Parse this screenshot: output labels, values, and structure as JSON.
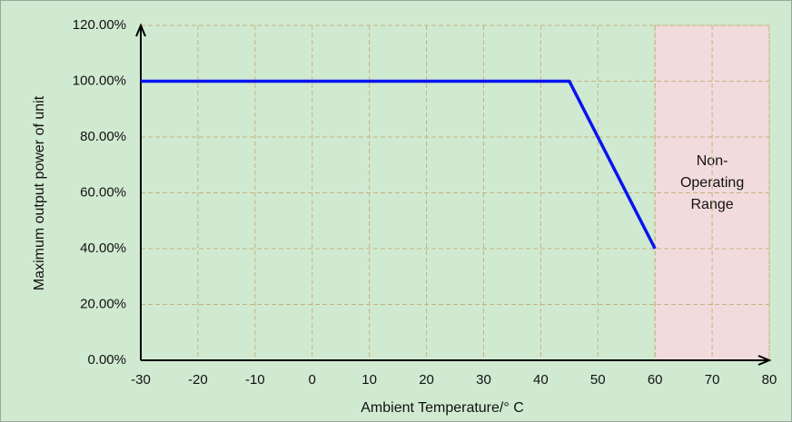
{
  "chart_data": {
    "type": "line",
    "x_label": "Ambient Temperature/° C",
    "y_label": "Maximum output power of unit",
    "x": [
      -30,
      45,
      60
    ],
    "series": [
      {
        "name": "Maximum output power",
        "color": "#0a14f0",
        "values": [
          100,
          100,
          40
        ]
      }
    ],
    "xlim": [
      -30,
      80
    ],
    "xticks": [
      -30,
      -20,
      -10,
      0,
      10,
      20,
      30,
      40,
      50,
      60,
      70,
      80
    ],
    "ylim": [
      0,
      120
    ],
    "yticks": [
      {
        "value": 0,
        "label": "0.00%"
      },
      {
        "value": 20,
        "label": "20.00%"
      },
      {
        "value": 40,
        "label": "40.00%"
      },
      {
        "value": 60,
        "label": "60.00%"
      },
      {
        "value": 80,
        "label": "80.00%"
      },
      {
        "value": 100,
        "label": "100.00%"
      },
      {
        "value": 120,
        "label": "120.00%"
      }
    ],
    "grid": true,
    "shaded_region": {
      "label": [
        "Non-",
        "Operating",
        "Range"
      ],
      "xrange": [
        60,
        80
      ],
      "color": "#f2dbdc"
    }
  }
}
